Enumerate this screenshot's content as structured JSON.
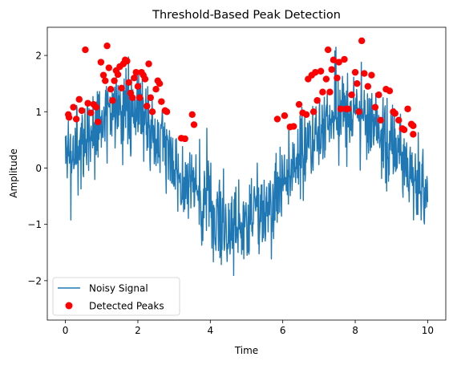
{
  "chart_data": {
    "type": "line",
    "title": "Threshold-Based Peak Detection",
    "xlabel": "Time",
    "ylabel": "Amplitude",
    "xlim": [
      -0.5,
      10.5
    ],
    "ylim": [
      -2.7,
      2.5
    ],
    "xticks": [
      0,
      2,
      4,
      6,
      8,
      10
    ],
    "yticks": [
      -2,
      -1,
      0,
      1,
      2
    ],
    "grid": false,
    "legend_position": "lower-left",
    "series": [
      {
        "name": "Noisy Signal",
        "kind": "line",
        "color": "#1f77b4",
        "model": "sin(x) + gaussian noise (sigma ~0.4)",
        "x_range": [
          0,
          10
        ],
        "n_points": 1000
      },
      {
        "name": "Detected Peaks",
        "kind": "scatter",
        "color": "#ff0000",
        "points": [
          [
            0.08,
            0.95
          ],
          [
            0.1,
            0.9
          ],
          [
            0.22,
            1.08
          ],
          [
            0.3,
            0.87
          ],
          [
            0.38,
            1.22
          ],
          [
            0.45,
            1.02
          ],
          [
            0.55,
            2.1
          ],
          [
            0.62,
            1.15
          ],
          [
            0.7,
            0.98
          ],
          [
            0.78,
            1.13
          ],
          [
            0.85,
            1.08
          ],
          [
            0.9,
            0.82
          ],
          [
            0.98,
            1.88
          ],
          [
            1.05,
            1.65
          ],
          [
            1.1,
            1.55
          ],
          [
            1.15,
            2.17
          ],
          [
            1.2,
            1.78
          ],
          [
            1.25,
            1.4
          ],
          [
            1.3,
            1.2
          ],
          [
            1.35,
            1.55
          ],
          [
            1.4,
            1.73
          ],
          [
            1.45,
            1.66
          ],
          [
            1.5,
            1.8
          ],
          [
            1.55,
            1.42
          ],
          [
            1.6,
            1.85
          ],
          [
            1.65,
            1.92
          ],
          [
            1.7,
            1.9
          ],
          [
            1.75,
            1.52
          ],
          [
            1.8,
            1.33
          ],
          [
            1.85,
            1.25
          ],
          [
            1.9,
            1.6
          ],
          [
            1.95,
            1.7
          ],
          [
            2.0,
            1.45
          ],
          [
            2.05,
            1.25
          ],
          [
            2.1,
            1.7
          ],
          [
            2.15,
            1.65
          ],
          [
            2.2,
            1.58
          ],
          [
            2.25,
            1.1
          ],
          [
            2.3,
            1.85
          ],
          [
            2.35,
            1.25
          ],
          [
            2.4,
            1.0
          ],
          [
            2.5,
            1.4
          ],
          [
            2.55,
            1.55
          ],
          [
            2.6,
            1.5
          ],
          [
            2.65,
            1.18
          ],
          [
            2.75,
            1.02
          ],
          [
            2.8,
            1.0
          ],
          [
            3.2,
            0.53
          ],
          [
            3.3,
            0.52
          ],
          [
            3.5,
            0.95
          ],
          [
            3.55,
            0.77
          ],
          [
            5.85,
            0.87
          ],
          [
            6.05,
            0.93
          ],
          [
            6.2,
            0.73
          ],
          [
            6.3,
            0.74
          ],
          [
            6.45,
            1.13
          ],
          [
            6.55,
            0.98
          ],
          [
            6.65,
            0.95
          ],
          [
            6.7,
            1.58
          ],
          [
            6.8,
            1.65
          ],
          [
            6.85,
            1.0
          ],
          [
            6.9,
            1.7
          ],
          [
            6.95,
            1.2
          ],
          [
            7.05,
            1.72
          ],
          [
            7.1,
            1.35
          ],
          [
            7.2,
            1.58
          ],
          [
            7.25,
            2.1
          ],
          [
            7.3,
            1.35
          ],
          [
            7.35,
            1.75
          ],
          [
            7.4,
            1.92
          ],
          [
            7.5,
            1.6
          ],
          [
            7.55,
            1.88
          ],
          [
            7.6,
            1.05
          ],
          [
            7.7,
            1.93
          ],
          [
            7.75,
            1.05
          ],
          [
            7.8,
            1.05
          ],
          [
            7.9,
            1.3
          ],
          [
            8.0,
            1.7
          ],
          [
            8.05,
            1.5
          ],
          [
            8.1,
            1.0
          ],
          [
            8.18,
            2.26
          ],
          [
            8.25,
            1.68
          ],
          [
            8.35,
            1.45
          ],
          [
            8.45,
            1.65
          ],
          [
            8.55,
            1.08
          ],
          [
            8.65,
            1.3
          ],
          [
            8.7,
            0.85
          ],
          [
            8.85,
            1.4
          ],
          [
            8.95,
            1.37
          ],
          [
            9.05,
            1.0
          ],
          [
            9.1,
            0.97
          ],
          [
            9.2,
            0.85
          ],
          [
            9.3,
            0.7
          ],
          [
            9.35,
            0.68
          ],
          [
            9.45,
            1.05
          ],
          [
            9.55,
            0.78
          ],
          [
            9.6,
            0.6
          ],
          [
            9.6,
            0.75
          ]
        ]
      }
    ]
  }
}
